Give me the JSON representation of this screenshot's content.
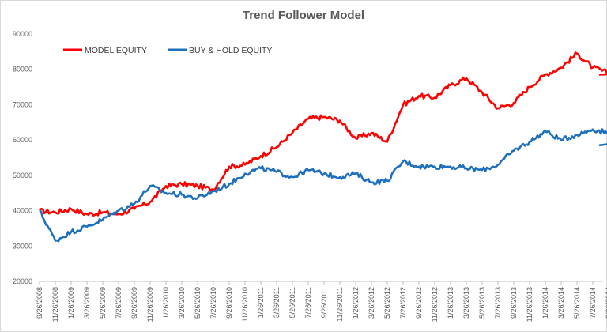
{
  "chart_data": {
    "type": "line",
    "title": "Trend Follower Model",
    "xlabel": "",
    "ylabel": "",
    "ylim": [
      20000,
      90000
    ],
    "y_ticks": [
      20000,
      30000,
      40000,
      50000,
      60000,
      70000,
      80000,
      90000
    ],
    "x_ticks": [
      "9/26/2008",
      "11/26/2008",
      "1/26/2009",
      "3/26/2009",
      "5/26/2009",
      "7/26/2009",
      "9/26/2009",
      "11/26/2009",
      "1/26/2010",
      "3/26/2010",
      "5/26/2010",
      "7/26/2010",
      "9/26/2010",
      "11/26/2010",
      "1/26/2011",
      "3/26/2011",
      "5/26/2011",
      "7/26/2011",
      "9/26/2011",
      "11/26/2011",
      "1/26/2012",
      "3/26/2012",
      "5/26/2012",
      "7/26/2012",
      "9/26/2012",
      "11/26/2012",
      "1/26/2013",
      "3/26/2013",
      "5/26/2013",
      "7/26/2013",
      "9/26/2013",
      "11/26/2013",
      "1/26/2014",
      "3/26/2014",
      "5/26/2014",
      "7/26/2014",
      "9/26/2014"
    ],
    "grid": false,
    "legend_position": "top-left",
    "x": [
      "9/26/2008",
      "11/26/2008",
      "1/26/2009",
      "3/26/2009",
      "5/26/2009",
      "7/26/2009",
      "9/26/2009",
      "11/26/2009",
      "1/26/2010",
      "3/26/2010",
      "5/26/2010",
      "7/26/2010",
      "9/26/2010",
      "11/26/2010",
      "1/26/2011",
      "3/26/2011",
      "5/26/2011",
      "7/26/2011",
      "9/26/2011",
      "11/26/2011",
      "1/26/2012",
      "3/26/2012",
      "5/26/2012",
      "7/26/2012",
      "9/26/2012",
      "11/26/2012",
      "1/26/2013",
      "3/26/2013",
      "5/26/2013",
      "7/26/2013",
      "9/26/2013",
      "11/26/2013",
      "1/26/2014",
      "3/26/2014",
      "5/26/2014",
      "7/26/2014",
      "9/26/2014",
      "11/26/2014"
    ],
    "series": [
      {
        "name": "MODEL EQUITY",
        "color": "#ff0000",
        "values": [
          40000,
          39500,
          40500,
          39000,
          39500,
          39000,
          40500,
          42500,
          47000,
          47500,
          47000,
          46000,
          52500,
          53000,
          55500,
          58000,
          62000,
          66000,
          66500,
          65500,
          60500,
          62000,
          59500,
          70000,
          72500,
          72000,
          75500,
          77500,
          73500,
          69000,
          70500,
          75000,
          78500,
          80500,
          84500,
          80500,
          79000,
          78500
        ]
      },
      {
        "name": "BUY & HOLD EQUITY",
        "color": "#1f6fbf",
        "values": [
          40000,
          31500,
          34000,
          35500,
          37500,
          40000,
          42000,
          47000,
          45000,
          44500,
          43500,
          45500,
          47500,
          50500,
          52000,
          51000,
          49500,
          51500,
          50500,
          49500,
          50500,
          48000,
          48500,
          54000,
          52500,
          52500,
          52500,
          52000,
          51500,
          53000,
          57000,
          59500,
          62500,
          60000,
          61500,
          63000,
          62000,
          58500
        ]
      }
    ]
  }
}
